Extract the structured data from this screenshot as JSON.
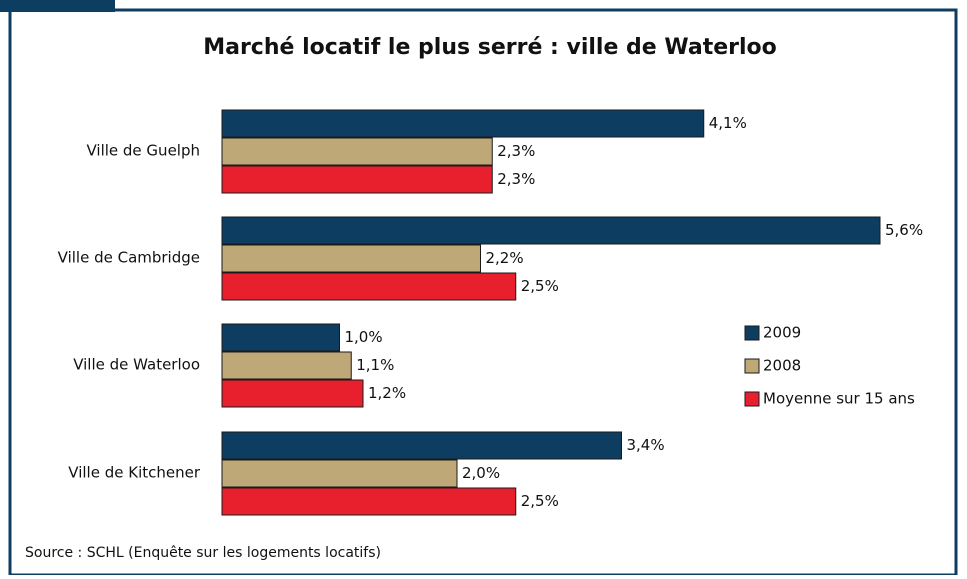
{
  "chart_data": {
    "type": "bar",
    "orientation": "horizontal",
    "title": "Marché locatif le plus serré : ville de Waterloo",
    "source": "Source : SCHL (Enquête sur les logements locatifs)",
    "categories": [
      "Ville de Guelph",
      "Ville de Cambridge",
      "Ville de Waterloo",
      "Ville de Kitchener"
    ],
    "series": [
      {
        "name": "2009",
        "color": "#0e3d62",
        "values": [
          4.1,
          5.6,
          1.0,
          3.4
        ],
        "value_labels": [
          "4,1%",
          "5,6%",
          "1,0%",
          "3,4%"
        ]
      },
      {
        "name": "2008",
        "color": "#bfa878",
        "values": [
          2.3,
          2.2,
          1.1,
          2.0
        ],
        "value_labels": [
          "2,3%",
          "2,2%",
          "1,1%",
          "2,0%"
        ]
      },
      {
        "name": "Moyenne sur 15 ans",
        "color": "#e8202e",
        "values": [
          2.3,
          2.5,
          1.2,
          2.5
        ],
        "value_labels": [
          "2,3%",
          "2,5%",
          "1,2%",
          "2,5%"
        ]
      }
    ],
    "xlim": [
      0,
      6
    ],
    "legend": "right"
  }
}
